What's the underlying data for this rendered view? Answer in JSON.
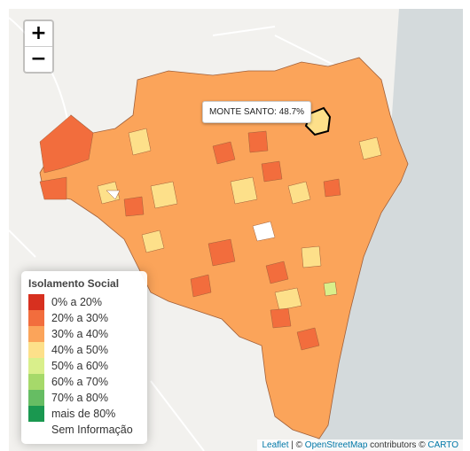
{
  "zoom": {
    "in_label": "+",
    "out_label": "−"
  },
  "tooltip": {
    "text": "MONTE SANTO: 48.7%"
  },
  "legend": {
    "title": "Isolamento Social",
    "items": [
      {
        "label": "0% a 20%",
        "color": "#d7301f"
      },
      {
        "label": "20% a 30%",
        "color": "#f26d3d"
      },
      {
        "label": "30% a 40%",
        "color": "#fba45a"
      },
      {
        "label": "40% a 50%",
        "color": "#fde08a"
      },
      {
        "label": "50% a 60%",
        "color": "#d9ef8b"
      },
      {
        "label": "60% a 70%",
        "color": "#a6d96a"
      },
      {
        "label": "70% a 80%",
        "color": "#66bd63"
      },
      {
        "label": "mais de 80%",
        "color": "#1a9850"
      },
      {
        "label": "Sem Informação",
        "color": "#ffffff"
      }
    ]
  },
  "attribution": {
    "leaflet": "Leaflet",
    "sep1": " | © ",
    "osm": "OpenStreetMap",
    "mid": " contributors © ",
    "carto": "CARTO"
  }
}
